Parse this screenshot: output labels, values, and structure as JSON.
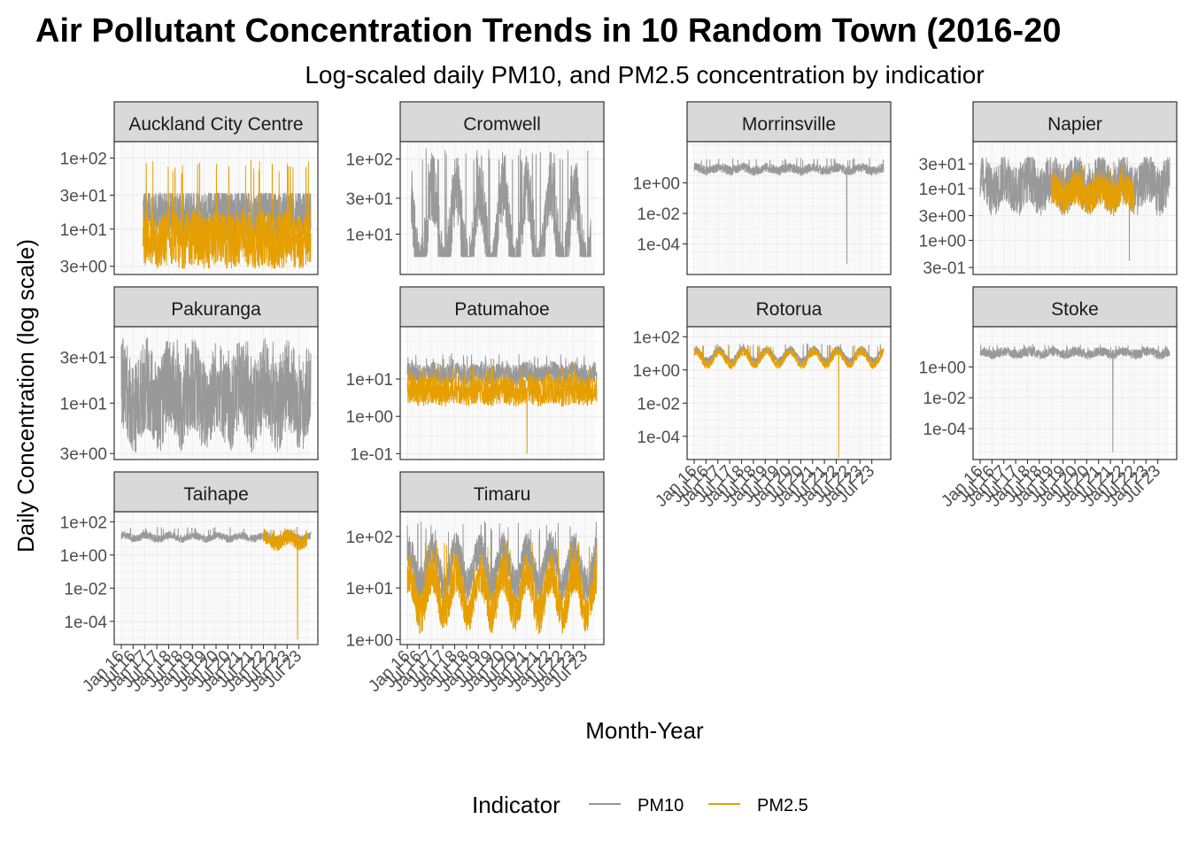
{
  "chart_data": {
    "type": "line",
    "title": "Air Pollutant Concentration Trends in 10 Random Town (2016-20",
    "subtitle": "Log-scaled daily PM10, and PM2.5 concentration by indicatior",
    "xlabel": "Month-Year",
    "ylabel": "Daily Concentration (log scale)",
    "y_scale": "log10",
    "grid": true,
    "facet_scales": "free_y",
    "legend": {
      "title": "Indicator",
      "position": "bottom",
      "entries": [
        {
          "label": "PM10",
          "color": "#999999"
        },
        {
          "label": "PM2.5",
          "color": "#E69F00"
        }
      ]
    },
    "x_range": [
      "2016-01",
      "2023-12"
    ],
    "x_ticks": [
      "Jan 16",
      "Jul 16",
      "Jan 17",
      "Jul 17",
      "Jan 18",
      "Jul 18",
      "Jan 19",
      "Jul 19",
      "Jan 20",
      "Jul 20",
      "Jan 21",
      "Jul 21",
      "Jan 22",
      "Jul 22",
      "Jan 23",
      "Jul 23"
    ],
    "colors": {
      "PM10": "#999999",
      "PM2.5": "#E69F00",
      "strip_bg": "#D9D9D9",
      "panel_border": "#333333",
      "grid": "#EBEBEB"
    },
    "panels": [
      {
        "name": "Auckland City Centre",
        "ylim": [
          2.3,
          170
        ],
        "y_ticks": [
          {
            "v": 3,
            "l": "3e+00"
          },
          {
            "v": 10,
            "l": "1e+01"
          },
          {
            "v": 30,
            "l": "3e+01"
          },
          {
            "v": 100,
            "l": "1e+02"
          }
        ],
        "series": [
          {
            "name": "PM10",
            "start": "2016-12",
            "end": "2023-12",
            "mid": 17,
            "spread": 0.22,
            "low": 7,
            "high": 32,
            "seasonal": 0.05
          },
          {
            "name": "PM2.5",
            "start": "2016-12",
            "end": "2023-12",
            "mid": 7,
            "spread": 0.25,
            "low": 2.8,
            "high": 95,
            "seasonal": 0.05
          }
        ]
      },
      {
        "name": "Cromwell",
        "ylim": [
          2.9,
          170
        ],
        "y_ticks": [
          {
            "v": 10,
            "l": "1e+01"
          },
          {
            "v": 30,
            "l": "3e+01"
          },
          {
            "v": 100,
            "l": "1e+02"
          }
        ],
        "series": [
          {
            "name": "PM10",
            "start": "2016-03",
            "end": "2023-09",
            "mid": 11,
            "spread": 0.3,
            "low": 5,
            "high": 140,
            "seasonal": 0.6
          }
        ]
      },
      {
        "name": "Morrinsville",
        "ylim": [
          1e-06,
          500
        ],
        "y_ticks": [
          {
            "v": 0.0001,
            "l": "1e-04"
          },
          {
            "v": 0.01,
            "l": "1e-02"
          },
          {
            "v": 1,
            "l": "1e+00"
          }
        ],
        "series": [
          {
            "name": "PM10",
            "start": "2016-01",
            "end": "2023-12",
            "mid": 8,
            "spread": 0.2,
            "low": 5e-06,
            "high": 45,
            "seasonal": 0.1
          }
        ]
      },
      {
        "name": "Napier",
        "ylim": [
          0.22,
          80
        ],
        "y_ticks": [
          {
            "v": 0.3,
            "l": "3e-01"
          },
          {
            "v": 1,
            "l": "1e+00"
          },
          {
            "v": 3,
            "l": "3e+00"
          },
          {
            "v": 10,
            "l": "1e+01"
          },
          {
            "v": 30,
            "l": "3e+01"
          }
        ],
        "series": [
          {
            "name": "PM10",
            "start": "2016-01",
            "end": "2023-12",
            "mid": 12,
            "spread": 0.3,
            "low": 0.4,
            "high": 40,
            "seasonal": 0.15
          },
          {
            "name": "PM2.5",
            "start": "2019-01",
            "end": "2022-06",
            "mid": 8,
            "spread": 0.2,
            "low": 3,
            "high": 30,
            "seasonal": 0.1
          }
        ]
      },
      {
        "name": "Pakuranga",
        "ylim": [
          2.6,
          62
        ],
        "y_ticks": [
          {
            "v": 3,
            "l": "3e+00"
          },
          {
            "v": 10,
            "l": "1e+01"
          },
          {
            "v": 30,
            "l": "3e+01"
          }
        ],
        "series": [
          {
            "name": "PM10",
            "start": "2016-01",
            "end": "2023-12",
            "mid": 12,
            "spread": 0.3,
            "low": 2.8,
            "high": 50,
            "seasonal": 0.12
          }
        ]
      },
      {
        "name": "Patumahoe",
        "ylim": [
          0.07,
          250
        ],
        "y_ticks": [
          {
            "v": 0.1,
            "l": "1e-01"
          },
          {
            "v": 1,
            "l": "1e+00"
          },
          {
            "v": 10,
            "l": "1e+01"
          }
        ],
        "series": [
          {
            "name": "PM10",
            "start": "2016-01",
            "end": "2023-12",
            "mid": 14,
            "spread": 0.18,
            "low": 2,
            "high": 50,
            "seasonal": 0.05
          },
          {
            "name": "PM2.5",
            "start": "2016-01",
            "end": "2023-12",
            "mid": 5,
            "spread": 0.25,
            "low": 0.1,
            "high": 25,
            "seasonal": 0.05
          }
        ]
      },
      {
        "name": "Rotorua",
        "ylim": [
          4e-06,
          400
        ],
        "y_ticks": [
          {
            "v": 0.0001,
            "l": "1e-04"
          },
          {
            "v": 0.01,
            "l": "1e-02"
          },
          {
            "v": 1,
            "l": "1e+00"
          },
          {
            "v": 100,
            "l": "1e+02"
          }
        ],
        "series": [
          {
            "name": "PM10",
            "start": "2016-01",
            "end": "2023-12",
            "mid": 8,
            "spread": 0.12,
            "low": 1,
            "high": 40,
            "seasonal": 0.35
          },
          {
            "name": "PM2.5",
            "start": "2016-01",
            "end": "2023-12",
            "mid": 5,
            "spread": 0.15,
            "low": 5e-06,
            "high": 35,
            "seasonal": 0.4
          }
        ]
      },
      {
        "name": "Stoke",
        "ylim": [
          1e-06,
          400
        ],
        "y_ticks": [
          {
            "v": 0.0001,
            "l": "1e-04"
          },
          {
            "v": 0.01,
            "l": "1e-02"
          },
          {
            "v": 1,
            "l": "1e+00"
          }
        ],
        "series": [
          {
            "name": "PM10",
            "start": "2016-01",
            "end": "2023-12",
            "mid": 8,
            "spread": 0.2,
            "low": 3e-06,
            "high": 30,
            "seasonal": 0.1
          }
        ]
      },
      {
        "name": "Taihape",
        "ylim": [
          4e-06,
          400
        ],
        "y_ticks": [
          {
            "v": 0.0001,
            "l": "1e-04"
          },
          {
            "v": 0.01,
            "l": "1e-02"
          },
          {
            "v": 1,
            "l": "1e+00"
          },
          {
            "v": 100,
            "l": "1e+02"
          }
        ],
        "series": [
          {
            "name": "PM10",
            "start": "2016-01",
            "end": "2023-12",
            "mid": 12,
            "spread": 0.15,
            "low": 4,
            "high": 50,
            "seasonal": 0.1
          },
          {
            "name": "PM2.5",
            "start": "2022-01",
            "end": "2023-10",
            "mid": 8,
            "spread": 0.3,
            "low": 8e-06,
            "high": 40,
            "seasonal": 0.2
          }
        ]
      },
      {
        "name": "Timaru",
        "ylim": [
          0.8,
          300
        ],
        "y_ticks": [
          {
            "v": 1,
            "l": "1e+00"
          },
          {
            "v": 10,
            "l": "1e+01"
          },
          {
            "v": 100,
            "l": "1e+02"
          }
        ],
        "series": [
          {
            "name": "PM10",
            "start": "2016-01",
            "end": "2023-12",
            "mid": 25,
            "spread": 0.22,
            "low": 4,
            "high": 200,
            "seasonal": 0.35
          },
          {
            "name": "PM2.5",
            "start": "2016-01",
            "end": "2023-12",
            "mid": 8,
            "spread": 0.25,
            "low": 1,
            "high": 90,
            "seasonal": 0.4
          }
        ]
      }
    ]
  }
}
